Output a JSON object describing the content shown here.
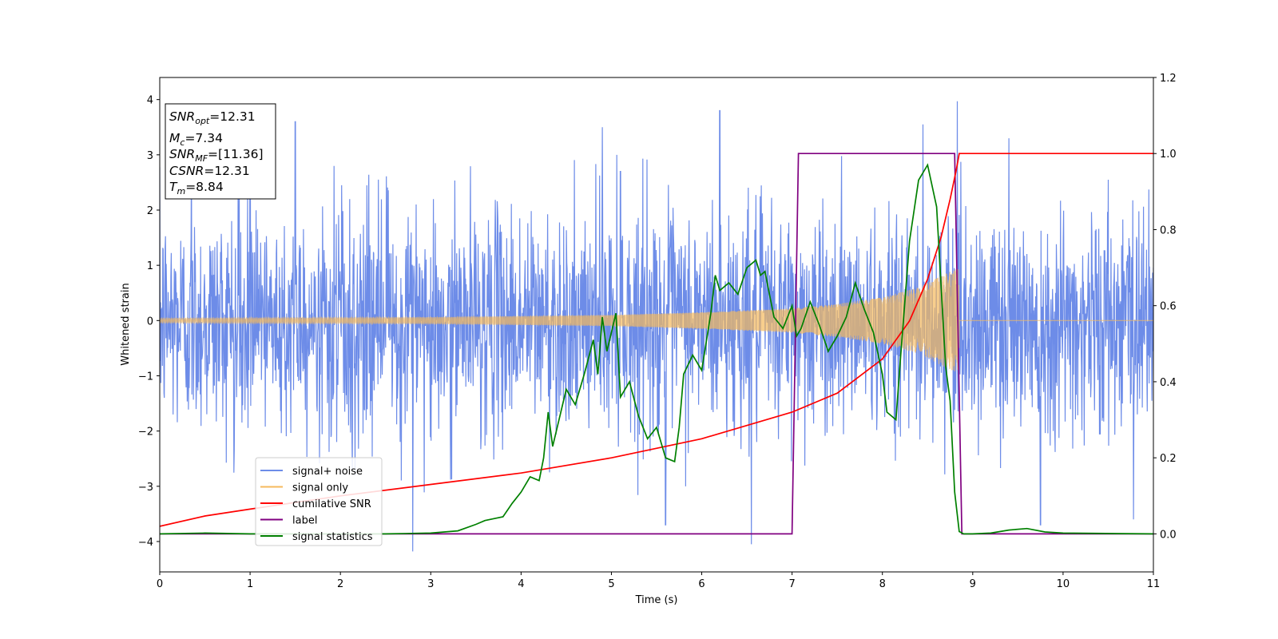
{
  "chart_data": {
    "type": "line",
    "title": "",
    "xlabel": "Time (s)",
    "ylabel": "Whitened strain",
    "xlim": [
      0,
      11
    ],
    "ylim_left": [
      -4.55,
      4.4
    ],
    "ylim_right": [
      -0.1,
      1.2
    ],
    "xticks": [
      "0",
      "1",
      "2",
      "3",
      "4",
      "5",
      "6",
      "7",
      "8",
      "9",
      "10",
      "11"
    ],
    "yticks_left": [
      "−4",
      "−3",
      "−2",
      "−1",
      "0",
      "1",
      "2",
      "3",
      "4"
    ],
    "yticks_right": [
      "0.0",
      "0.2",
      "0.4",
      "0.6",
      "0.8",
      "1.0",
      "1.2"
    ],
    "grid": false,
    "legend_position": "lower-left",
    "series": [
      {
        "name": "signal+ noise",
        "axis": "left",
        "color": "#6d8ce8",
        "description_values": {
          "envelope_low": -2.0,
          "envelope_high": 2.4,
          "peak_max": 3.97,
          "peak_min": -4.18
        },
        "peaks": [
          [
            0.35,
            3.2
          ],
          [
            1.0,
            3.35
          ],
          [
            1.5,
            3.6
          ],
          [
            2.8,
            -4.18
          ],
          [
            4.9,
            3.5
          ],
          [
            5.1,
            2.7
          ],
          [
            5.6,
            -3.7
          ],
          [
            6.2,
            3.8
          ],
          [
            6.55,
            -4.05
          ],
          [
            8.45,
            3.55
          ],
          [
            8.83,
            3.97
          ],
          [
            9.4,
            3.3
          ],
          [
            9.75,
            -3.7
          ],
          [
            10.78,
            -3.6
          ]
        ]
      },
      {
        "name": "signal only",
        "axis": "left",
        "color": "#f5b95c",
        "amplitude": [
          [
            0,
            0.04
          ],
          [
            3,
            0.06
          ],
          [
            5,
            0.1
          ],
          [
            6,
            0.15
          ],
          [
            7,
            0.22
          ],
          [
            7.5,
            0.3
          ],
          [
            8,
            0.42
          ],
          [
            8.4,
            0.6
          ],
          [
            8.7,
            0.85
          ],
          [
            8.84,
            0.95
          ],
          [
            8.86,
            0
          ],
          [
            11,
            0
          ]
        ]
      },
      {
        "name": "cumilative SNR",
        "axis": "right",
        "color": "#ff0000",
        "points": [
          [
            0,
            0.02
          ],
          [
            0.5,
            0.047
          ],
          [
            1,
            0.065
          ],
          [
            2,
            0.1
          ],
          [
            3,
            0.13
          ],
          [
            4,
            0.16
          ],
          [
            5,
            0.2
          ],
          [
            6,
            0.25
          ],
          [
            7,
            0.32
          ],
          [
            7.5,
            0.37
          ],
          [
            8,
            0.46
          ],
          [
            8.3,
            0.56
          ],
          [
            8.5,
            0.67
          ],
          [
            8.65,
            0.78
          ],
          [
            8.75,
            0.88
          ],
          [
            8.82,
            0.96
          ],
          [
            8.85,
            1.0
          ],
          [
            11,
            1.0
          ]
        ]
      },
      {
        "name": "label",
        "axis": "right",
        "color": "#800080",
        "points": [
          [
            0,
            0
          ],
          [
            7.0,
            0
          ],
          [
            7.07,
            1.0
          ],
          [
            8.8,
            1.0
          ],
          [
            8.88,
            0
          ],
          [
            11,
            0
          ]
        ]
      },
      {
        "name": "signal statistics",
        "axis": "right",
        "color": "#008000",
        "points": [
          [
            0,
            0.0
          ],
          [
            0.5,
            0.002
          ],
          [
            1,
            0.0
          ],
          [
            2,
            0.0
          ],
          [
            2.5,
            0.0
          ],
          [
            3,
            0.002
          ],
          [
            3.3,
            0.008
          ],
          [
            3.5,
            0.025
          ],
          [
            3.6,
            0.035
          ],
          [
            3.7,
            0.04
          ],
          [
            3.8,
            0.045
          ],
          [
            3.9,
            0.08
          ],
          [
            4.0,
            0.11
          ],
          [
            4.1,
            0.15
          ],
          [
            4.2,
            0.14
          ],
          [
            4.25,
            0.2
          ],
          [
            4.3,
            0.32
          ],
          [
            4.35,
            0.23
          ],
          [
            4.4,
            0.28
          ],
          [
            4.5,
            0.38
          ],
          [
            4.6,
            0.34
          ],
          [
            4.7,
            0.42
          ],
          [
            4.8,
            0.51
          ],
          [
            4.85,
            0.42
          ],
          [
            4.9,
            0.57
          ],
          [
            4.95,
            0.48
          ],
          [
            5.0,
            0.53
          ],
          [
            5.05,
            0.58
          ],
          [
            5.1,
            0.36
          ],
          [
            5.2,
            0.4
          ],
          [
            5.3,
            0.31
          ],
          [
            5.4,
            0.25
          ],
          [
            5.5,
            0.28
          ],
          [
            5.6,
            0.2
          ],
          [
            5.7,
            0.19
          ],
          [
            5.75,
            0.28
          ],
          [
            5.8,
            0.42
          ],
          [
            5.9,
            0.47
          ],
          [
            6.0,
            0.43
          ],
          [
            6.1,
            0.58
          ],
          [
            6.15,
            0.68
          ],
          [
            6.2,
            0.64
          ],
          [
            6.3,
            0.66
          ],
          [
            6.4,
            0.63
          ],
          [
            6.5,
            0.7
          ],
          [
            6.6,
            0.72
          ],
          [
            6.65,
            0.68
          ],
          [
            6.7,
            0.69
          ],
          [
            6.8,
            0.57
          ],
          [
            6.9,
            0.54
          ],
          [
            7.0,
            0.6
          ],
          [
            7.05,
            0.52
          ],
          [
            7.1,
            0.54
          ],
          [
            7.2,
            0.61
          ],
          [
            7.3,
            0.55
          ],
          [
            7.4,
            0.48
          ],
          [
            7.5,
            0.52
          ],
          [
            7.6,
            0.57
          ],
          [
            7.7,
            0.66
          ],
          [
            7.8,
            0.59
          ],
          [
            7.9,
            0.53
          ],
          [
            8.0,
            0.42
          ],
          [
            8.05,
            0.32
          ],
          [
            8.15,
            0.3
          ],
          [
            8.2,
            0.46
          ],
          [
            8.3,
            0.77
          ],
          [
            8.4,
            0.93
          ],
          [
            8.5,
            0.97
          ],
          [
            8.6,
            0.86
          ],
          [
            8.7,
            0.44
          ],
          [
            8.75,
            0.35
          ],
          [
            8.8,
            0.11
          ],
          [
            8.85,
            0.006
          ],
          [
            8.9,
            0.0
          ],
          [
            9.0,
            0.0
          ],
          [
            9.2,
            0.002
          ],
          [
            9.4,
            0.01
          ],
          [
            9.6,
            0.014
          ],
          [
            9.8,
            0.005
          ],
          [
            10,
            0.002
          ],
          [
            11,
            0.0
          ]
        ]
      }
    ]
  },
  "info_box": {
    "snr_opt": {
      "label": "SNR",
      "sub": "opt",
      "value": "=12.31"
    },
    "mc": {
      "label": "M",
      "sub": "c",
      "value": "=7.34"
    },
    "snr_mf": {
      "label": "SNR",
      "sub": "MF",
      "value": "=[11.36]"
    },
    "csnr": {
      "label": "CSNR",
      "value": "=12.31"
    },
    "tm": {
      "label": "T",
      "sub": "m",
      "value": "=8.84"
    }
  },
  "legend": {
    "items": [
      {
        "label": "signal+ noise",
        "color": "#6d8ce8"
      },
      {
        "label": "signal only",
        "color": "#f5b95c"
      },
      {
        "label": "cumilative SNR",
        "color": "#ff0000"
      },
      {
        "label": "label",
        "color": "#800080"
      },
      {
        "label": "signal statistics",
        "color": "#008000"
      }
    ]
  }
}
